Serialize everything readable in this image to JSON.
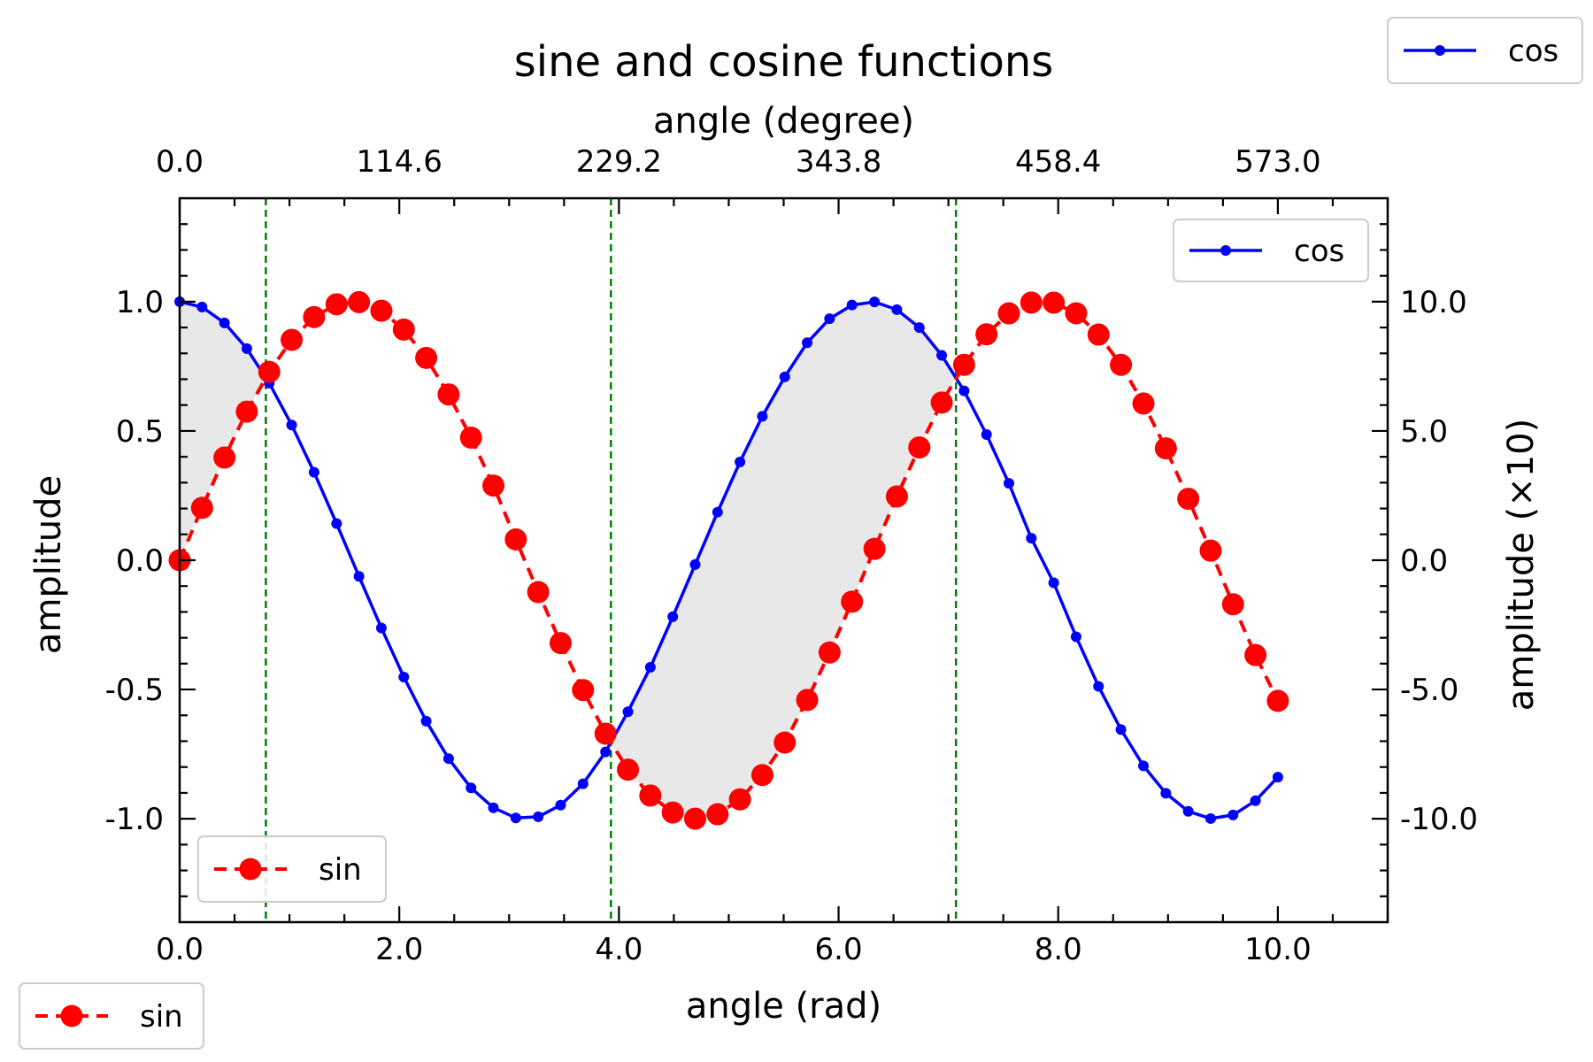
{
  "chart_data": {
    "type": "line",
    "title": "sine and cosine functions",
    "xlabel": "angle (rad)",
    "ylabel": "amplitude",
    "top_xlabel": "angle (degree)",
    "right_ylabel": "amplitude (×10)",
    "xlim": [
      0,
      11
    ],
    "ylim": [
      -1.4,
      1.4
    ],
    "x_ticks": [
      0,
      2,
      4,
      6,
      8,
      10
    ],
    "x_tick_labels": [
      "0.0",
      "2.0",
      "4.0",
      "6.0",
      "8.0",
      "10.0"
    ],
    "y_ticks": [
      -1,
      -0.5,
      0,
      0.5,
      1
    ],
    "y_tick_labels": [
      "-1.0",
      "-0.5",
      "0.0",
      "0.5",
      "1.0"
    ],
    "top_x_ticks": [
      0,
      2,
      4,
      6,
      8,
      10
    ],
    "top_tick_labels": [
      "0.0",
      "114.6",
      "229.2",
      "343.8",
      "458.4",
      "573.0"
    ],
    "right_y_ticks": [
      -1,
      -0.5,
      0,
      0.5,
      1
    ],
    "right_tick_labels": [
      "-10.0",
      "-5.0",
      "0.0",
      "5.0",
      "10.0"
    ],
    "x": [
      0.0,
      0.204,
      0.408,
      0.612,
      0.816,
      1.02,
      1.224,
      1.429,
      1.633,
      1.837,
      2.041,
      2.245,
      2.449,
      2.653,
      2.857,
      3.061,
      3.265,
      3.469,
      3.673,
      3.878,
      4.082,
      4.286,
      4.49,
      4.694,
      4.898,
      5.102,
      5.306,
      5.51,
      5.714,
      5.918,
      6.122,
      6.327,
      6.531,
      6.735,
      6.939,
      7.143,
      7.347,
      7.551,
      7.755,
      7.959,
      8.163,
      8.367,
      8.571,
      8.776,
      8.98,
      9.184,
      9.388,
      9.592,
      9.796,
      10.0
    ],
    "series": [
      {
        "name": "sin",
        "color": "#ff0000",
        "line_style": "dashed",
        "marker": "large-circle",
        "values": [
          0.0,
          0.2026,
          0.3969,
          0.5747,
          0.7287,
          0.8523,
          0.9405,
          0.9898,
          0.9981,
          0.965,
          0.8921,
          0.7826,
          0.6411,
          0.4741,
          0.2886,
          0.0804,
          -0.1232,
          -0.3204,
          -0.5022,
          -0.6708,
          -0.8101,
          -0.9102,
          -0.9758,
          -0.9998,
          -0.9826,
          -0.925,
          -0.8309,
          -0.7051,
          -0.5406,
          -0.3569,
          -0.1604,
          0.0439,
          0.2466,
          0.4362,
          0.6098,
          0.7558,
          0.8739,
          0.9548,
          0.9964,
          0.9962,
          0.9552,
          0.8728,
          0.7556,
          0.6062,
          0.4326,
          0.2376,
          0.0371,
          -0.1704,
          -0.3668,
          -0.544
        ]
      },
      {
        "name": "cos",
        "color": "#0000ff",
        "line_style": "solid",
        "marker": "small-circle",
        "values": [
          1.0,
          0.9793,
          0.9179,
          0.8185,
          0.6848,
          0.523,
          0.34,
          0.1417,
          -0.0623,
          -0.2624,
          -0.4518,
          -0.6224,
          -0.7674,
          -0.8806,
          -0.9575,
          -0.9968,
          -0.9924,
          -0.9473,
          -0.8648,
          -0.7415,
          -0.5863,
          -0.4141,
          -0.2188,
          -0.0167,
          0.1859,
          0.3799,
          0.5565,
          0.709,
          0.8413,
          0.9341,
          0.987,
          0.999,
          0.969,
          0.8998,
          0.7925,
          0.6549,
          0.4861,
          0.2973,
          0.0851,
          -0.0872,
          -0.296,
          -0.488,
          -0.6549,
          -0.7953,
          -0.9016,
          -0.9713,
          -0.9993,
          -0.9854,
          -0.9303,
          -0.8391
        ]
      }
    ],
    "vertical_lines": {
      "color": "#008000",
      "style": "dashed",
      "x": [
        0.785,
        3.927,
        7.069
      ]
    },
    "fill_between": {
      "color": "#e8e8e8",
      "description_of_regions": "cos above sin",
      "regions": [
        [
          0.0,
          0.785
        ],
        [
          3.927,
          7.069
        ]
      ]
    },
    "legends": [
      {
        "series": "cos",
        "placement": "inside-top-right"
      },
      {
        "series": "sin",
        "placement": "inside-bottom-left"
      },
      {
        "series": "cos",
        "placement": "figure-top-right"
      },
      {
        "series": "sin",
        "placement": "figure-bottom-left"
      }
    ],
    "grid": false
  }
}
